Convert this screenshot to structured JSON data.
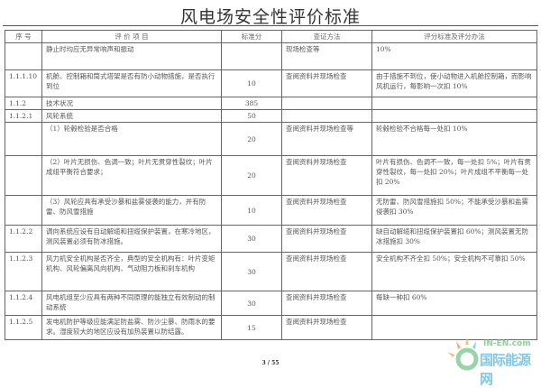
{
  "title": "风电场安全性评价标准",
  "table": {
    "headers": [
      "序 号",
      "评 价 项 目",
      "标准分",
      "查证方法",
      "评分标准及评分办法"
    ],
    "rows": [
      {
        "no": "",
        "item": "静止时均应无异常响声和振动",
        "score": "",
        "method": "现场检查等",
        "criteria": "10%"
      },
      {
        "no": "1.1.1.10",
        "item": "机舱、控制箱和筒式塔架是否有防小动物措施，是否执行到位",
        "score": "10",
        "method": "查阅资料并现场检查",
        "criteria": "由于措施不到位，使小动物进入机舱控制箱，而影响风机运行，每影响一次扣 10%"
      },
      {
        "no": "1.1.2",
        "item": "技术状况",
        "score": "385",
        "method": "",
        "criteria": ""
      },
      {
        "no": "1.1.2.1",
        "item": "风轮系统",
        "score": "50",
        "method": "",
        "criteria": ""
      },
      {
        "no": "",
        "item": "（1）轮毂检验是否合格",
        "score": "20",
        "method": "查阅资料并现场检查等",
        "criteria": "轮毂检验不合格每一处扣 10%"
      },
      {
        "no": "",
        "item": "（2）叶片无损伤、色调一致；叶片无贯穿性裂纹；叶片成组平衡符合要求；",
        "score": "20",
        "method": "查阅资料并现场检查",
        "criteria": "叶片有损伤、色调不一致，每一处扣 5%；叶片有贯穿性裂纹，每一处扣 20%；叶片成组不平衡每一处扣 20%"
      },
      {
        "no": "",
        "item": "（3）风轮应具有承受沙暴和盐雾侵袭的能力，并有防雷、防风雪措施",
        "score": "10",
        "method": "查阅资料并现场检查",
        "criteria": "无防雷、防风雪措施扣 50%；不能承受沙暴和盐雾侵袭扣 30%"
      },
      {
        "no": "1.1.2.2",
        "item": "调向系统应设有自动解缆和扭缆保护装置，在寒冷地区，测风装置必须有防冰措施。",
        "score": "30",
        "method": "查阅资料并现场检查",
        "criteria": "缺自动解缆和扭缆保护装置扣 60%；测风装置无防冰措施扣 30%"
      },
      {
        "no": "1.1.2.3",
        "item": "风力机安全机构是否齐全，典型的安全机构有：叶片变矩机构、风轮偏离风向机构、气动阻力板和刹车机构",
        "score": "30",
        "method": "查阅资料并现场检查",
        "criteria": "安全机构不齐全扣 50%；安全机构不可靠扣 50%"
      },
      {
        "no": "1.1.2.4",
        "item": "风电机组至少应具有两种不同原理的能独立有效制动的制动系统",
        "score": "30",
        "method": "查阅资料并现场检查",
        "criteria": "每缺一种扣 60%"
      },
      {
        "no": "1.1.2.5",
        "item": "发电机防护等级应能满足防盐雾、防沙尘暴、防雨水的要求。湿度较大的地区应设有加热装置以防结露。",
        "score": "15",
        "method": "查阅资料并现场检查",
        "criteria": ""
      }
    ]
  },
  "page_number": "3 / 55",
  "watermark": {
    "en": "IN-EN.com",
    "cn": "国际能源网"
  }
}
